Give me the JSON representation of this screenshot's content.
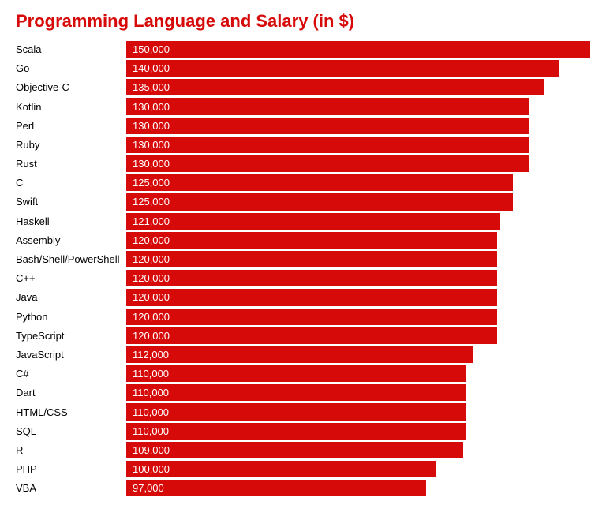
{
  "chart": {
    "type": "bar",
    "title": "Programming Language and Salary (in $)",
    "title_color": "#d70a0a",
    "title_fontsize": 22,
    "bar_color": "#d70a0a",
    "value_text_color": "#ffffff",
    "label_text_color": "#000000",
    "background_color": "#ffffff",
    "label_fontsize": 13,
    "value_fontsize": 13,
    "xmax": 150000,
    "row_height": 24.2,
    "bar_gap": 3,
    "label_width": 140,
    "rows": [
      {
        "label": "Scala",
        "value": 150000,
        "value_label": "150,000"
      },
      {
        "label": "Go",
        "value": 140000,
        "value_label": "140,000"
      },
      {
        "label": "Objective-C",
        "value": 135000,
        "value_label": "135,000"
      },
      {
        "label": "Kotlin",
        "value": 130000,
        "value_label": "130,000"
      },
      {
        "label": "Perl",
        "value": 130000,
        "value_label": "130,000"
      },
      {
        "label": "Ruby",
        "value": 130000,
        "value_label": "130,000"
      },
      {
        "label": "Rust",
        "value": 130000,
        "value_label": "130,000"
      },
      {
        "label": "C",
        "value": 125000,
        "value_label": "125,000"
      },
      {
        "label": "Swift",
        "value": 125000,
        "value_label": "125,000"
      },
      {
        "label": "Haskell",
        "value": 121000,
        "value_label": "121,000"
      },
      {
        "label": "Assembly",
        "value": 120000,
        "value_label": "120,000"
      },
      {
        "label": "Bash/Shell/PowerShell",
        "value": 120000,
        "value_label": "120,000"
      },
      {
        "label": "C++",
        "value": 120000,
        "value_label": "120,000"
      },
      {
        "label": "Java",
        "value": 120000,
        "value_label": "120,000"
      },
      {
        "label": "Python",
        "value": 120000,
        "value_label": "120,000"
      },
      {
        "label": "TypeScript",
        "value": 120000,
        "value_label": "120,000"
      },
      {
        "label": "JavaScript",
        "value": 112000,
        "value_label": "112,000"
      },
      {
        "label": "C#",
        "value": 110000,
        "value_label": "110,000"
      },
      {
        "label": "Dart",
        "value": 110000,
        "value_label": "110,000"
      },
      {
        "label": "HTML/CSS",
        "value": 110000,
        "value_label": "110,000"
      },
      {
        "label": "SQL",
        "value": 110000,
        "value_label": "110,000"
      },
      {
        "label": "R",
        "value": 109000,
        "value_label": "109,000"
      },
      {
        "label": "PHP",
        "value": 100000,
        "value_label": "100,000"
      },
      {
        "label": "VBA",
        "value": 97000,
        "value_label": "97,000"
      }
    ]
  }
}
